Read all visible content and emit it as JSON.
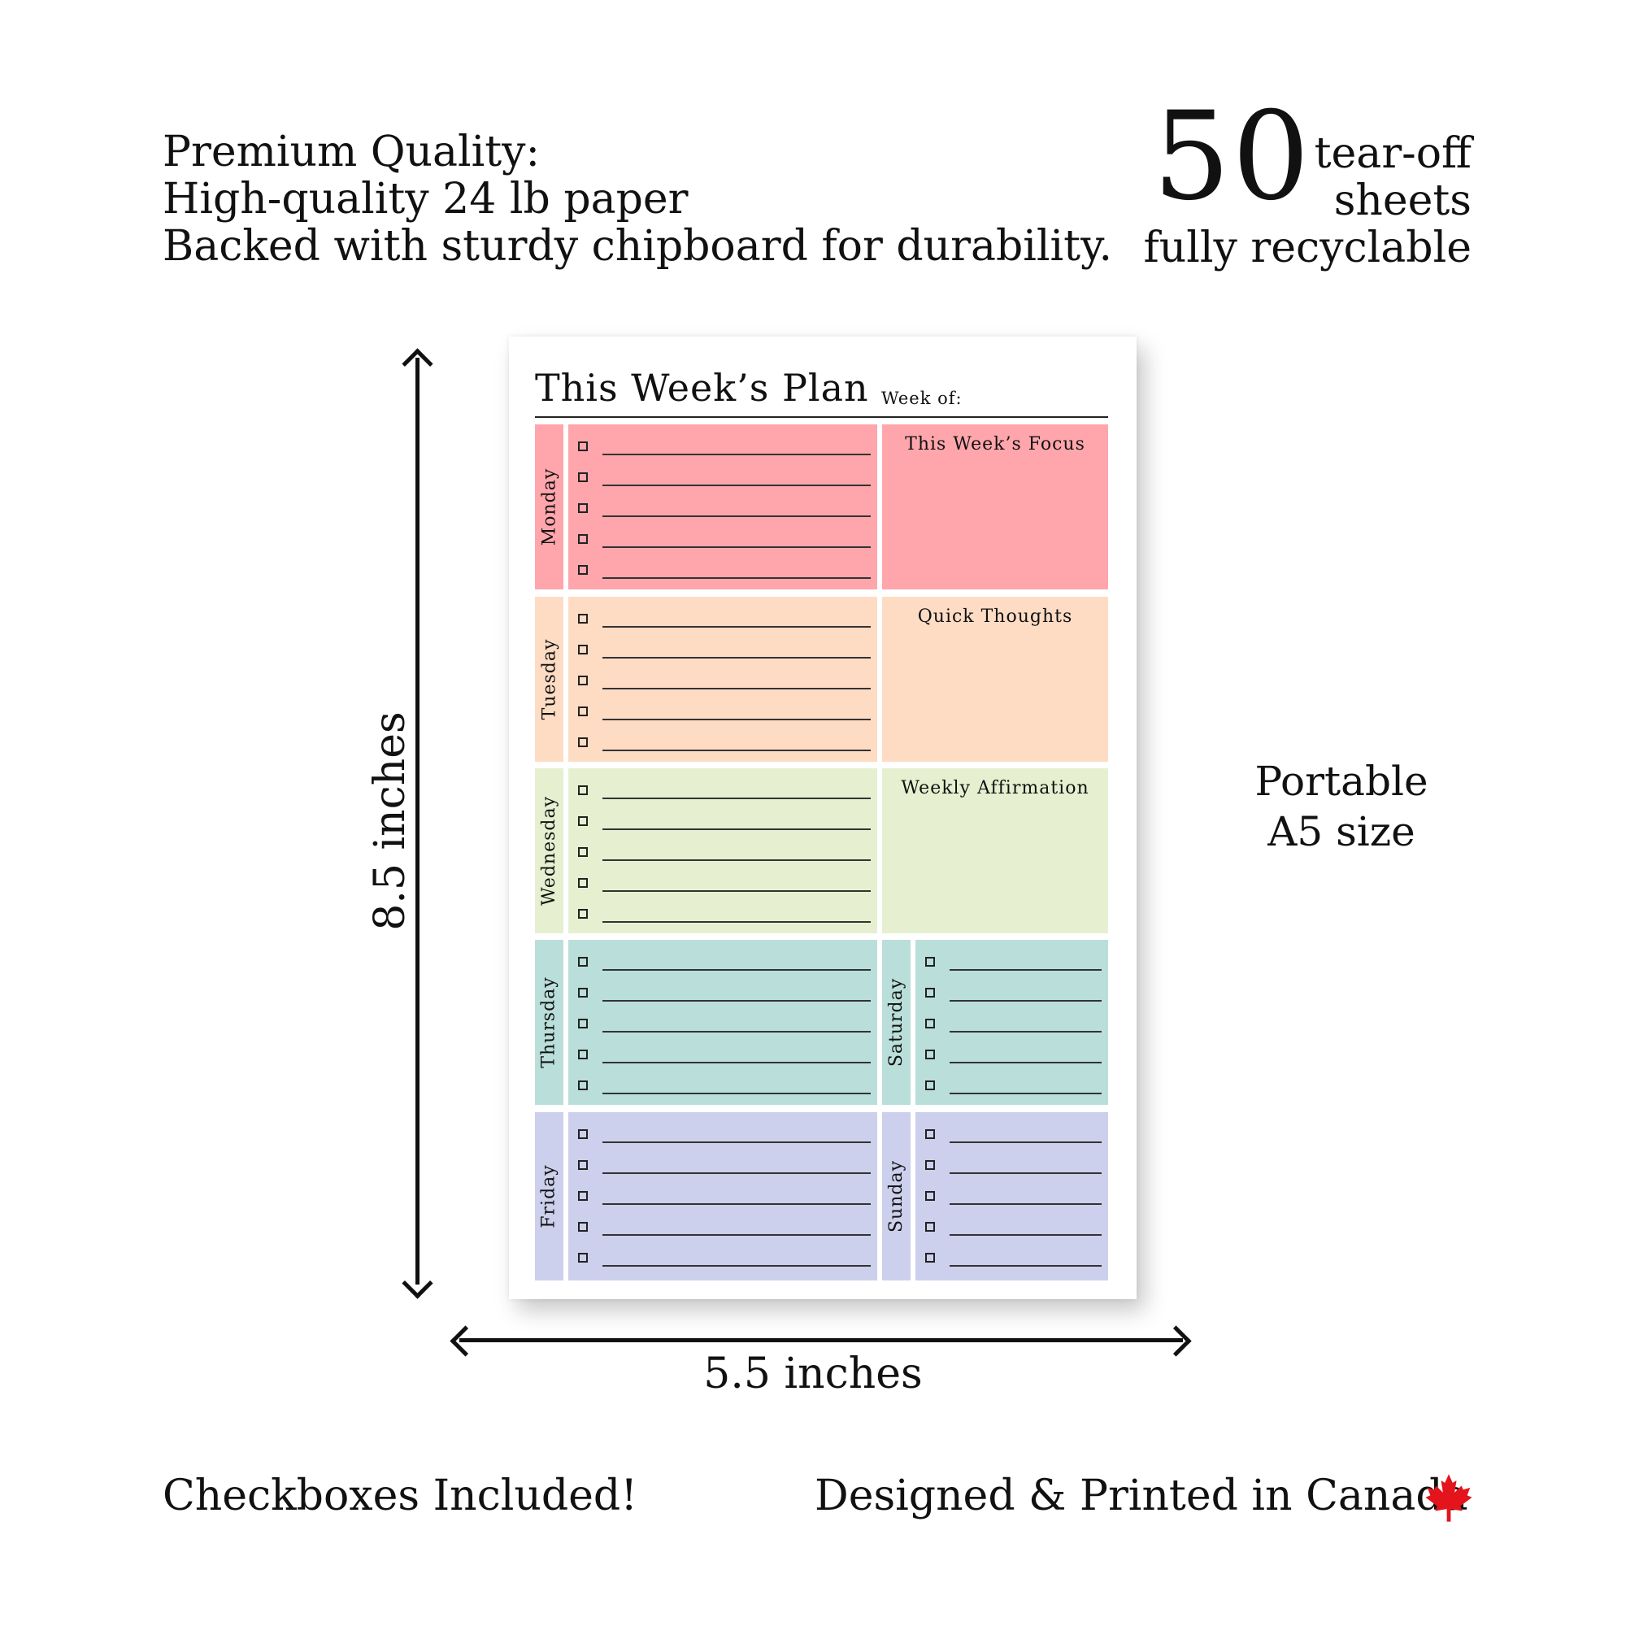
{
  "features": {
    "line1": "Premium Quality:",
    "line2": "High-quality 24 lb paper",
    "line3": "Backed with sturdy chipboard for durability."
  },
  "sheets": {
    "count": "50",
    "line1": "tear-off",
    "line2": "sheets",
    "line3": "fully recyclable"
  },
  "dimensions": {
    "height": "8.5 inches",
    "width": "5.5 inches"
  },
  "portable": {
    "line1": "Portable",
    "line2": "A5 size"
  },
  "bottom": {
    "left": "Checkboxes Included!",
    "right": "Designed & Printed in Canada"
  },
  "planner": {
    "title": "This Week’s Plan",
    "week_of": "Week of:",
    "tasks_per_day": 5,
    "days": {
      "monday": "Monday",
      "tuesday": "Tuesday",
      "wednesday": "Wednesday",
      "thursday": "Thursday",
      "friday": "Friday",
      "saturday": "Saturday",
      "sunday": "Sunday"
    },
    "panels": {
      "focus": "This Week’s Focus",
      "thoughts": "Quick Thoughts",
      "affirmation": "Weekly Affirmation"
    }
  },
  "colors": {
    "pink": "#ffa6ac",
    "peach": "#fedcc4",
    "green": "#e6f0d0",
    "teal": "#badfda",
    "lavender": "#ccd0ec",
    "maple": "#e3141c"
  },
  "icons": {
    "maple_leaf": "maple-leaf-icon",
    "checkbox": "checkbox-icon"
  }
}
